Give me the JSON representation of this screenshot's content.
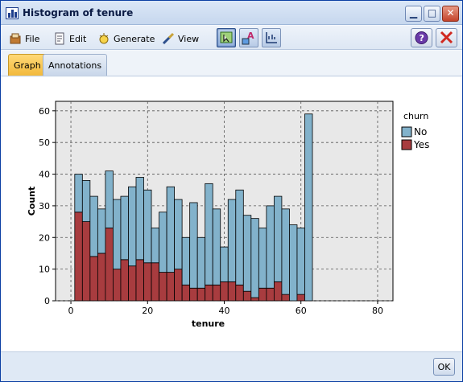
{
  "window": {
    "title": "Histogram of tenure"
  },
  "menu": {
    "file": "File",
    "edit": "Edit",
    "generate": "Generate",
    "view": "View"
  },
  "tabs": [
    {
      "label": "Graph",
      "active": true
    },
    {
      "label": "Annotations",
      "active": false
    }
  ],
  "footer": {
    "ok_label": "OK"
  },
  "colors": {
    "no": "#82b2cb",
    "yes": "#a83c3f",
    "plot_bg": "#e8e8e8",
    "accent_tab": "#f5c04a"
  },
  "icons": [
    "file-icon",
    "edit-icon",
    "generate-icon",
    "view-icon",
    "help-icon",
    "close-icon"
  ],
  "chart_data": {
    "type": "bar",
    "stacked": true,
    "xlabel": "tenure",
    "ylabel": "Count",
    "xlim": [
      -4,
      84
    ],
    "ylim": [
      0,
      63
    ],
    "xticks": [
      0,
      20,
      40,
      60,
      80
    ],
    "yticks": [
      0,
      10,
      20,
      30,
      40,
      50,
      60
    ],
    "grid": true,
    "legend": {
      "title": "churn",
      "placement": "right"
    },
    "bin_width": 2,
    "bin_starts": [
      1,
      3,
      5,
      7,
      9,
      11,
      13,
      15,
      17,
      19,
      21,
      23,
      25,
      27,
      29,
      31,
      33,
      35,
      37,
      39,
      41,
      43,
      45,
      47,
      49,
      51,
      53,
      55,
      57,
      59,
      61,
      63,
      65,
      67,
      69,
      71
    ],
    "series": [
      {
        "name": "Yes",
        "values": [
          28,
          25,
          14,
          15,
          23,
          10,
          13,
          11,
          13,
          12,
          12,
          9,
          9,
          10,
          5,
          4,
          4,
          5,
          5,
          6,
          6,
          5,
          3,
          1,
          4,
          4,
          6,
          2,
          0,
          2,
          0,
          0,
          0,
          0,
          0,
          0
        ]
      },
      {
        "name": "No",
        "values": [
          12,
          13,
          19,
          14,
          18,
          22,
          20,
          25,
          26,
          23,
          11,
          19,
          27,
          22,
          15,
          27,
          16,
          32,
          24,
          11,
          26,
          30,
          24,
          25,
          19,
          26,
          27,
          27,
          24,
          21,
          59,
          0,
          0,
          0,
          0,
          0
        ]
      }
    ]
  }
}
